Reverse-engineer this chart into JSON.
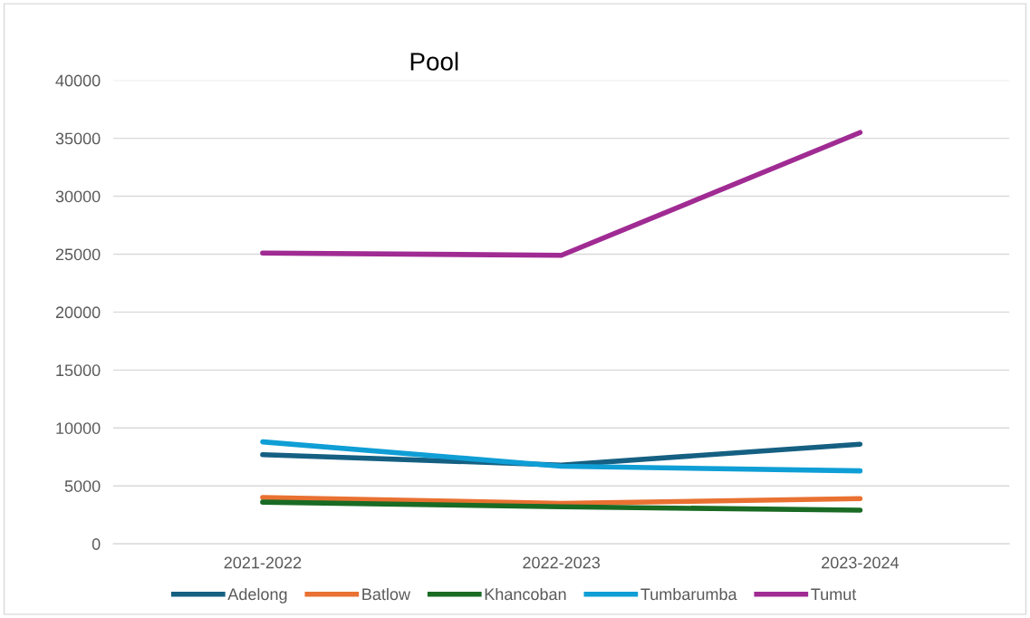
{
  "chart_data": {
    "type": "line",
    "title": "Pool",
    "categories": [
      "2021-2022",
      "2022-2023",
      "2023-2024"
    ],
    "series": [
      {
        "name": "Adelong",
        "color": "#156082",
        "values": [
          7700,
          6800,
          8600
        ]
      },
      {
        "name": "Batlow",
        "color": "#e97132",
        "values": [
          4000,
          3500,
          3900
        ]
      },
      {
        "name": "Khancoban",
        "color": "#196b24",
        "values": [
          3600,
          3200,
          2900
        ]
      },
      {
        "name": "Tumbarumba",
        "color": "#0f9ed5",
        "values": [
          8800,
          6700,
          6300
        ]
      },
      {
        "name": "Tumut",
        "color": "#a02b93",
        "values": [
          25100,
          24900,
          35500
        ]
      }
    ],
    "ylim": [
      0,
      40000
    ],
    "yticks": [
      0,
      5000,
      10000,
      15000,
      20000,
      25000,
      30000,
      35000,
      40000
    ],
    "grid": "y",
    "legend": "bottom",
    "marker": "none",
    "line_style": "solid"
  }
}
